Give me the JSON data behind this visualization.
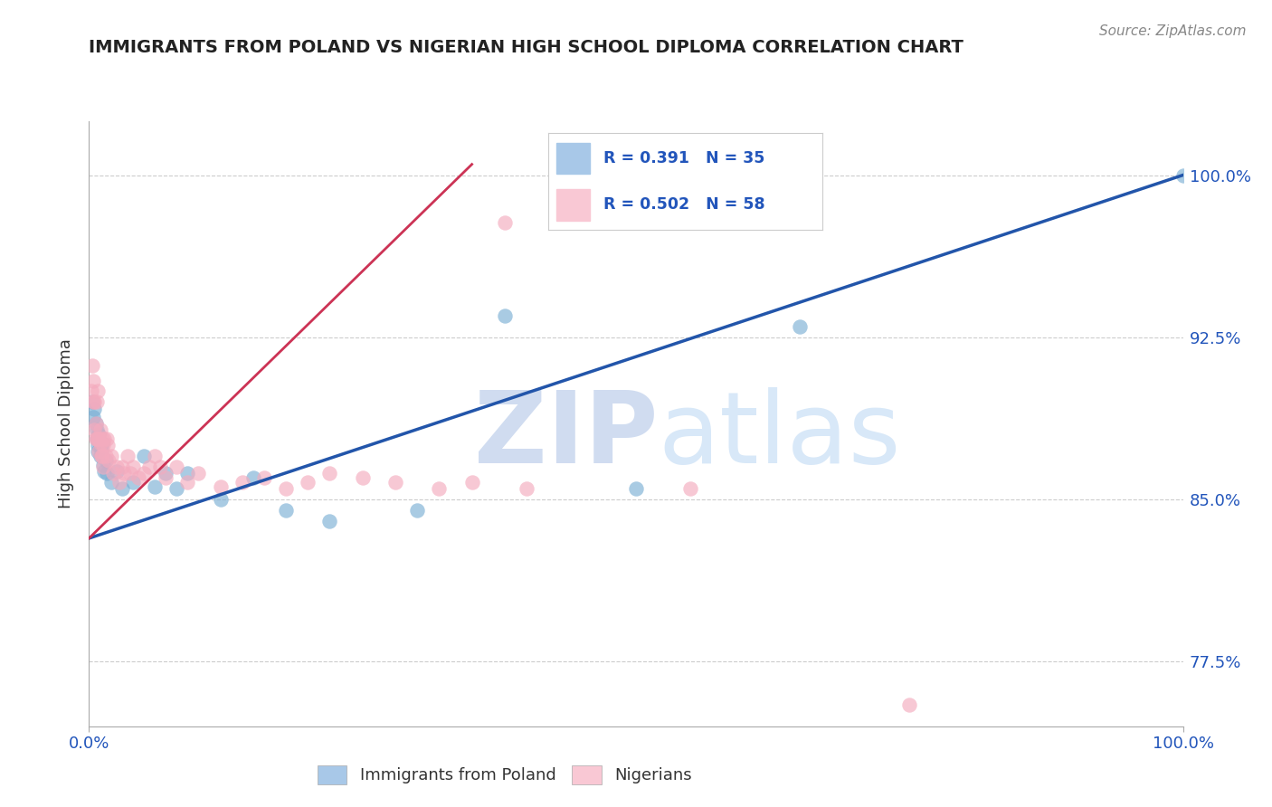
{
  "title": "IMMIGRANTS FROM POLAND VS NIGERIAN HIGH SCHOOL DIPLOMA CORRELATION CHART",
  "source": "Source: ZipAtlas.com",
  "ylabel": "High School Diploma",
  "legend_label1": "Immigrants from Poland",
  "legend_label2": "Nigerians",
  "r1": 0.391,
  "n1": 35,
  "r2": 0.502,
  "n2": 58,
  "color_blue": "#7BAFD4",
  "color_pink": "#F4ABBE",
  "line_blue": "#2255AA",
  "line_pink": "#CC3355",
  "color_blue_legend": "#A8C8E8",
  "color_pink_legend": "#F9C8D4",
  "xlim": [
    0.0,
    1.0
  ],
  "ylim": [
    0.745,
    1.025
  ],
  "yticks": [
    0.775,
    0.85,
    0.925,
    1.0
  ],
  "ytick_labels": [
    "77.5%",
    "85.0%",
    "92.5%",
    "100.0%"
  ],
  "poland_x": [
    0.003,
    0.004,
    0.005,
    0.006,
    0.007,
    0.007,
    0.008,
    0.008,
    0.009,
    0.01,
    0.01,
    0.011,
    0.012,
    0.013,
    0.014,
    0.015,
    0.016,
    0.02,
    0.025,
    0.03,
    0.04,
    0.05,
    0.06,
    0.07,
    0.08,
    0.09,
    0.12,
    0.15,
    0.18,
    0.22,
    0.3,
    0.38,
    0.5,
    0.65,
    1.0
  ],
  "poland_y": [
    0.895,
    0.888,
    0.892,
    0.885,
    0.882,
    0.878,
    0.875,
    0.872,
    0.88,
    0.876,
    0.87,
    0.873,
    0.876,
    0.866,
    0.863,
    0.868,
    0.862,
    0.858,
    0.863,
    0.855,
    0.858,
    0.87,
    0.856,
    0.862,
    0.855,
    0.862,
    0.85,
    0.86,
    0.845,
    0.84,
    0.845,
    0.935,
    0.855,
    0.93,
    1.0
  ],
  "nigeria_x": [
    0.002,
    0.003,
    0.004,
    0.004,
    0.005,
    0.005,
    0.006,
    0.006,
    0.007,
    0.007,
    0.008,
    0.008,
    0.009,
    0.009,
    0.01,
    0.01,
    0.011,
    0.012,
    0.012,
    0.013,
    0.013,
    0.014,
    0.015,
    0.016,
    0.017,
    0.018,
    0.02,
    0.022,
    0.025,
    0.028,
    0.03,
    0.032,
    0.035,
    0.038,
    0.04,
    0.045,
    0.05,
    0.055,
    0.06,
    0.065,
    0.07,
    0.08,
    0.09,
    0.1,
    0.12,
    0.14,
    0.16,
    0.18,
    0.2,
    0.22,
    0.25,
    0.28,
    0.32,
    0.35,
    0.38,
    0.4,
    0.55,
    0.75
  ],
  "nigeria_y": [
    0.9,
    0.912,
    0.905,
    0.895,
    0.895,
    0.882,
    0.885,
    0.878,
    0.895,
    0.878,
    0.9,
    0.878,
    0.878,
    0.872,
    0.882,
    0.876,
    0.87,
    0.878,
    0.87,
    0.875,
    0.865,
    0.878,
    0.87,
    0.878,
    0.875,
    0.868,
    0.87,
    0.862,
    0.865,
    0.858,
    0.865,
    0.862,
    0.87,
    0.862,
    0.865,
    0.86,
    0.862,
    0.865,
    0.87,
    0.865,
    0.86,
    0.865,
    0.858,
    0.862,
    0.856,
    0.858,
    0.86,
    0.855,
    0.858,
    0.862,
    0.86,
    0.858,
    0.855,
    0.858,
    0.978,
    0.855,
    0.855,
    0.755
  ],
  "blue_line_x0": 0.0,
  "blue_line_y0": 0.832,
  "blue_line_x1": 1.0,
  "blue_line_y1": 1.0,
  "pink_line_x0": 0.0,
  "pink_line_y0": 0.832,
  "pink_line_x1": 0.35,
  "pink_line_y1": 1.005
}
